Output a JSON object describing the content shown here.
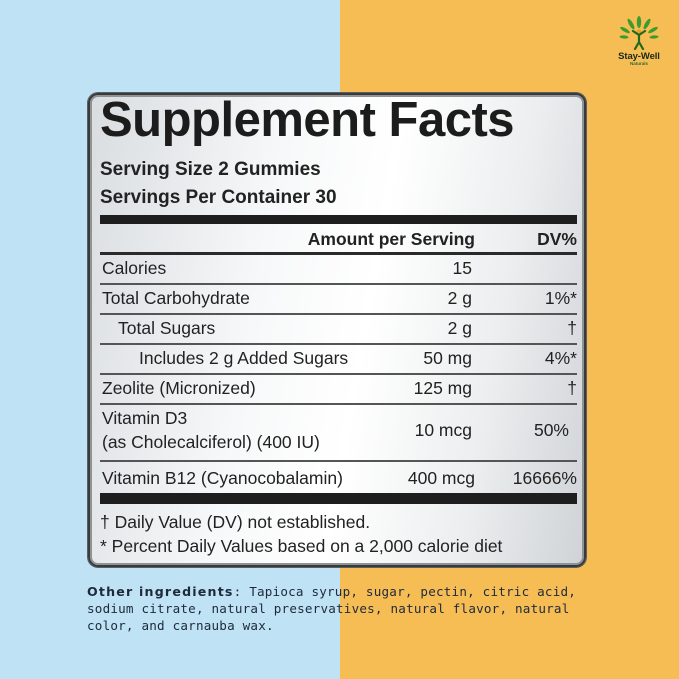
{
  "brand": {
    "name": "Stay-Well",
    "sub": "Naturals"
  },
  "panel": {
    "title": "Supplement Facts",
    "serving_size": "Serving Size 2 Gummies",
    "servings_per_container": "Servings Per Container 30",
    "col_amount": "Amount per Serving",
    "col_dv": "DV%",
    "rows": [
      {
        "name": "Calories",
        "amount": "15",
        "dv": ""
      },
      {
        "name": "Total Carbohydrate",
        "amount": "2 g",
        "dv": "1%*"
      },
      {
        "name": "Total Sugars",
        "amount": "2 g",
        "dv": "†"
      },
      {
        "name": "Includes 2 g Added Sugars",
        "amount": "50 mg",
        "dv": "4%*"
      },
      {
        "name": "Zeolite (Micronized)",
        "amount": "125 mg",
        "dv": "†"
      },
      {
        "name": "Vitamin D3",
        "name2": "(as Cholecalciferol) (400 IU)",
        "amount": "10 mcg",
        "dv": "50%"
      },
      {
        "name": "Vitamin B12 (Cyanocobalamin)",
        "amount": "400 mcg",
        "dv": "16666%"
      }
    ],
    "footnote1": "† Daily Value  (DV) not established.",
    "footnote2": "* Percent Daily Values based on a 2,000 calorie diet"
  },
  "other_ingredients": {
    "label": "Other ingredients",
    "text": ": Tapioca syrup, sugar, pectin, citric acid, sodium citrate, natural preservatives, natural flavor, natural color, and carnauba wax."
  },
  "colors": {
    "left_bg": "#bfe2f5",
    "right_bg": "#f7bd55",
    "leaf_green": "#3f9a2e",
    "figure_orange": "#e8a020"
  }
}
